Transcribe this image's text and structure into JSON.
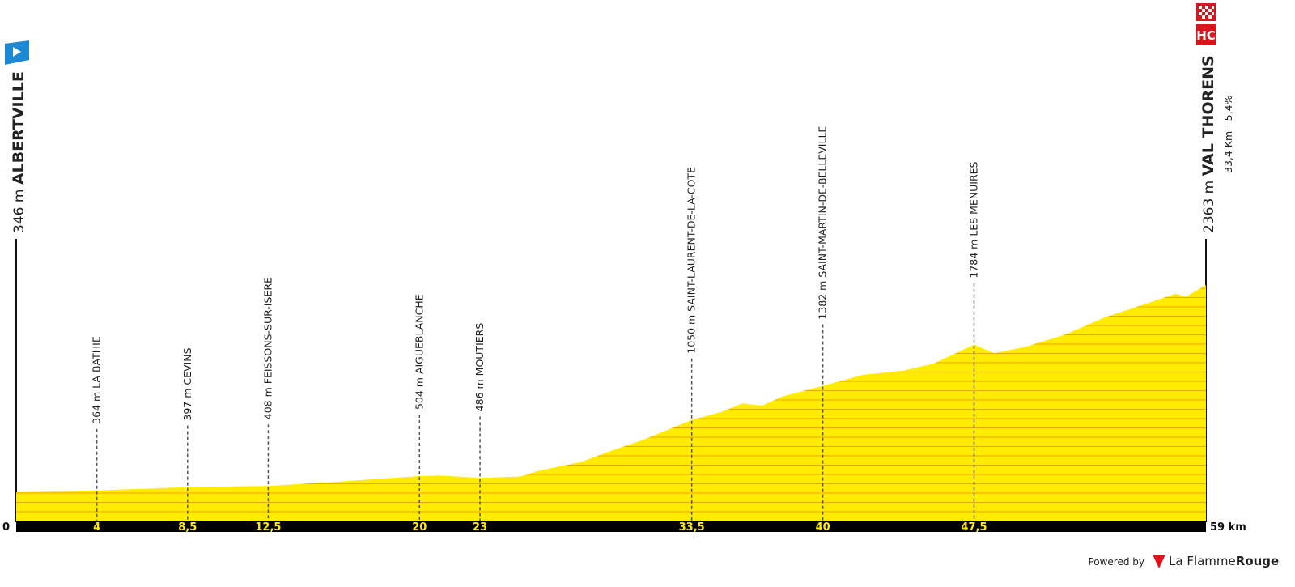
{
  "chart_data": {
    "type": "area",
    "color": "#ffec00",
    "stripe_color": "#f0a500",
    "start": {
      "elevation": 346,
      "elevation_label": "346 m",
      "name": "ALBERTVILLE"
    },
    "finish": {
      "elevation": 2363,
      "elevation_label": "2363 m",
      "name": "VAL THORENS",
      "climb": "33,4 Km - 5,4%",
      "category": "HC"
    },
    "xlim": [
      0,
      59
    ],
    "xticks": [
      0,
      4,
      {
        "value": 8.5,
        "label": "8,5"
      },
      {
        "value": 12.5,
        "label": "12,5"
      },
      20,
      23,
      {
        "value": 33.5,
        "label": "33,5"
      },
      40,
      {
        "value": 47.5,
        "label": "47,5"
      },
      {
        "value": 59,
        "label": "59 km"
      }
    ],
    "series": [
      {
        "name": "Profile",
        "x": [
          0,
          4,
          8.5,
          12.5,
          16,
          20,
          21,
          23,
          25,
          26,
          28,
          29.5,
          31,
          33.5,
          35,
          36,
          37,
          38,
          40,
          42,
          44,
          45.5,
          47.5,
          48.5,
          50,
          52,
          54,
          56,
          57.5,
          58,
          59
        ],
        "values": [
          346,
          364,
          397,
          408,
          450,
          504,
          510,
          486,
          500,
          560,
          640,
          750,
          850,
          1050,
          1130,
          1210,
          1190,
          1280,
          1382,
          1490,
          1530,
          1600,
          1784,
          1700,
          1760,
          1880,
          2050,
          2180,
          2280,
          2250,
          2363
        ]
      }
    ],
    "waypoints": [
      {
        "x": 4,
        "elevation": 364,
        "label": "364 m LA BATHIE"
      },
      {
        "x": 8.5,
        "elevation": 397,
        "label": "397 m CEVINS"
      },
      {
        "x": 12.5,
        "elevation": 408,
        "label": "408 m FEISSONS-SUR-ISERE"
      },
      {
        "x": 20,
        "elevation": 504,
        "label": "504 m AIGUEBLANCHE"
      },
      {
        "x": 23,
        "elevation": 486,
        "label": "486 m MOUTIERS"
      },
      {
        "x": 33.5,
        "elevation": 1050,
        "label": "1050 m SAINT-LAURENT-DE-LA-COTE"
      },
      {
        "x": 40,
        "elevation": 1382,
        "label": "1382 m SAINT-MARTIN-DE-BELLEVILLE"
      },
      {
        "x": 47.5,
        "elevation": 1784,
        "label": "1784 m LES MENUIRES"
      }
    ]
  },
  "footer": {
    "powered": "Powered by",
    "brand_a": "La Flamme",
    "brand_b": "Rouge"
  }
}
